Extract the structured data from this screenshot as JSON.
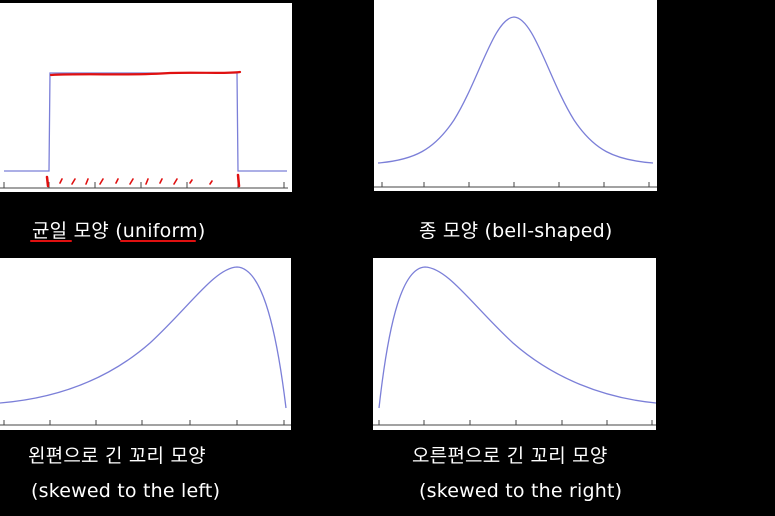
{
  "panels": {
    "uniform": {
      "caption": "균일 모양 (uniform)"
    },
    "bell": {
      "caption": "종 모양 (bell-shaped)"
    },
    "left_skew": {
      "caption_line1": "왼편으로 긴 꼬리 모양",
      "caption_line2": "(skewed to the left)"
    },
    "right_skew": {
      "caption_line1": "오른편으로 긴 꼬리 모양",
      "caption_line2": "(skewed to the right)"
    }
  },
  "colors": {
    "background": "#000000",
    "panel": "#ffffff",
    "curve": "#7b7fd8",
    "annotation": "#e01010",
    "caption": "#ffffff"
  }
}
